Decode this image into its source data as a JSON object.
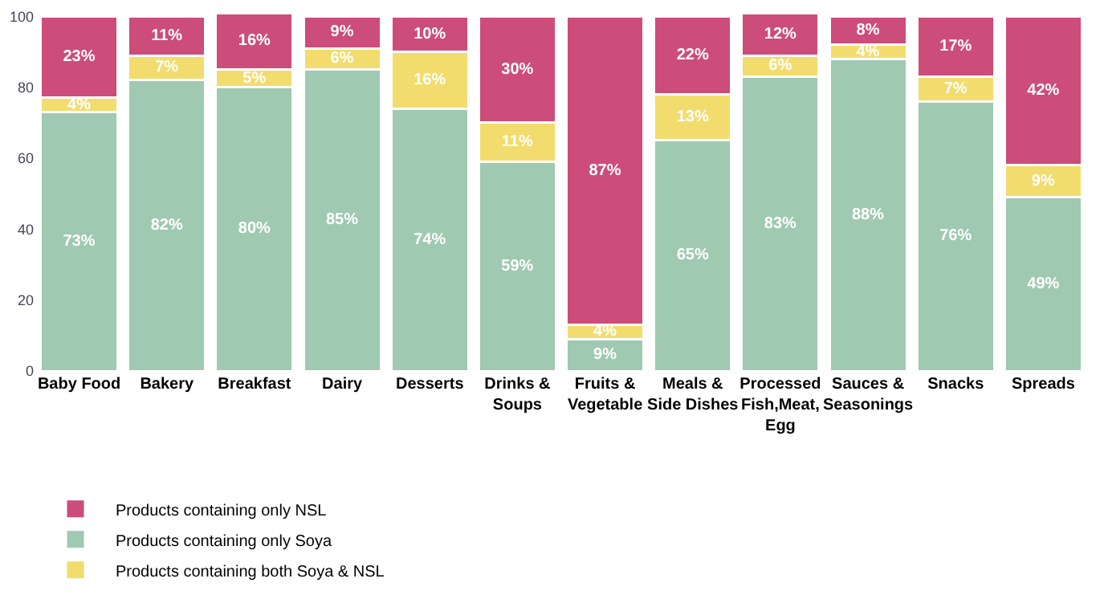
{
  "chart_data": {
    "type": "bar",
    "stacked": true,
    "categories": [
      "Baby Food",
      "Bakery",
      "Breakfast",
      "Dairy",
      "Desserts",
      "Drinks & Soups",
      "Fruits & Vegetable",
      "Meals & Side Dishes",
      "Processed Fish,Meat, Egg",
      "Sauces & Seasonings",
      "Snacks",
      "Spreads"
    ],
    "series": [
      {
        "name": "Products containing only Soya",
        "color": "#9fc9b0",
        "values": [
          73,
          82,
          80,
          85,
          74,
          59,
          9,
          65,
          83,
          88,
          76,
          49
        ],
        "value_labels": [
          "73%",
          "82%",
          "80%",
          "85%",
          "74%",
          "59%",
          "9%",
          "65%",
          "83%",
          "88%",
          "76%",
          "49%"
        ]
      },
      {
        "name": "Products containing both Soya & NSL",
        "color": "#f2dc6e",
        "values": [
          4,
          7,
          5,
          6,
          16,
          11,
          4,
          13,
          6,
          4,
          7,
          9
        ],
        "value_labels": [
          "4%",
          "7%",
          "5%",
          "6%",
          "16%",
          "11%",
          "4%",
          "13%",
          "6%",
          "4%",
          "7%",
          "9%"
        ]
      },
      {
        "name": "Products containing only NSL",
        "color": "#cc4c7a",
        "values": [
          23,
          11,
          16,
          9,
          10,
          30,
          87,
          22,
          12,
          8,
          17,
          42
        ],
        "value_labels": [
          "23%",
          "11%",
          "16%",
          "9%",
          "10%",
          "30%",
          "87%",
          "22%",
          "12%",
          "8%",
          "17%",
          "42%"
        ]
      }
    ],
    "ylim": [
      0,
      101
    ],
    "yticks": [
      0,
      20,
      40,
      60,
      80,
      100
    ],
    "grid": false,
    "legend": "bottom left"
  }
}
